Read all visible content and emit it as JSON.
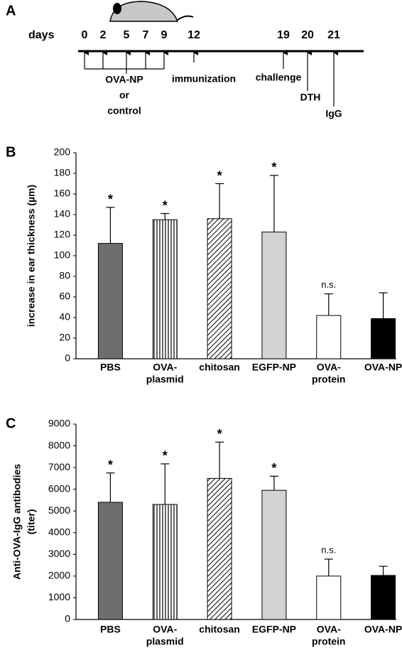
{
  "diagram": {
    "panel_label": "A",
    "axis_label": "days",
    "days": [
      0,
      2,
      5,
      7,
      9,
      12,
      19,
      20,
      21
    ],
    "treatment": [
      "OVA-NP",
      "or",
      "control"
    ],
    "immunization": "immunization",
    "challenge": "challenge",
    "dth": "DTH",
    "igg": "IgG"
  },
  "chart_data": [
    {
      "type": "bar",
      "panel_label": "B",
      "ylabel": [
        "increase in ear thickness (µm)"
      ],
      "categories": [
        [
          "PBS"
        ],
        [
          "OVA-",
          "plasmid"
        ],
        [
          "chitosan"
        ],
        [
          "EGFP-NP"
        ],
        [
          "OVA-",
          "protein"
        ],
        [
          "OVA-NP"
        ]
      ],
      "values": [
        112,
        135,
        136,
        123,
        42,
        39
      ],
      "errors": [
        35,
        6,
        34,
        55,
        21,
        25
      ],
      "colors": [
        "#6e6e6e",
        "#ffffff",
        "#ffffff",
        "#d3d3d3",
        "#ffffff",
        "#000000"
      ],
      "patterns": [
        "none",
        "vertical",
        "diagonal",
        "none",
        "none",
        "none"
      ],
      "annotations": [
        "*",
        "*",
        "*",
        "*",
        "n.s.",
        null
      ],
      "ylim": [
        0,
        200
      ],
      "yticks": [
        0,
        20,
        40,
        60,
        80,
        100,
        120,
        140,
        160,
        180,
        200
      ]
    },
    {
      "type": "bar",
      "panel_label": "C",
      "ylabel": [
        "Anti-OVA-IgG antibodies",
        "(titer)"
      ],
      "categories": [
        [
          "PBS"
        ],
        [
          "OVA-",
          "plasmid"
        ],
        [
          "chitosan"
        ],
        [
          "EGFP-NP"
        ],
        [
          "OVA-",
          "protein"
        ],
        [
          "OVA-NP"
        ]
      ],
      "values": [
        5400,
        5300,
        6500,
        5950,
        2000,
        2030
      ],
      "errors": [
        1350,
        1870,
        1670,
        650,
        780,
        420
      ],
      "colors": [
        "#6e6e6e",
        "#ffffff",
        "#ffffff",
        "#d3d3d3",
        "#ffffff",
        "#000000"
      ],
      "patterns": [
        "none",
        "vertical",
        "diagonal",
        "none",
        "none",
        "none"
      ],
      "annotations": [
        "*",
        "*",
        "*",
        "*",
        "n.s.",
        null
      ],
      "ylim": [
        0,
        9000
      ],
      "yticks": [
        0,
        1000,
        2000,
        3000,
        4000,
        5000,
        6000,
        7000,
        8000,
        9000
      ]
    }
  ]
}
